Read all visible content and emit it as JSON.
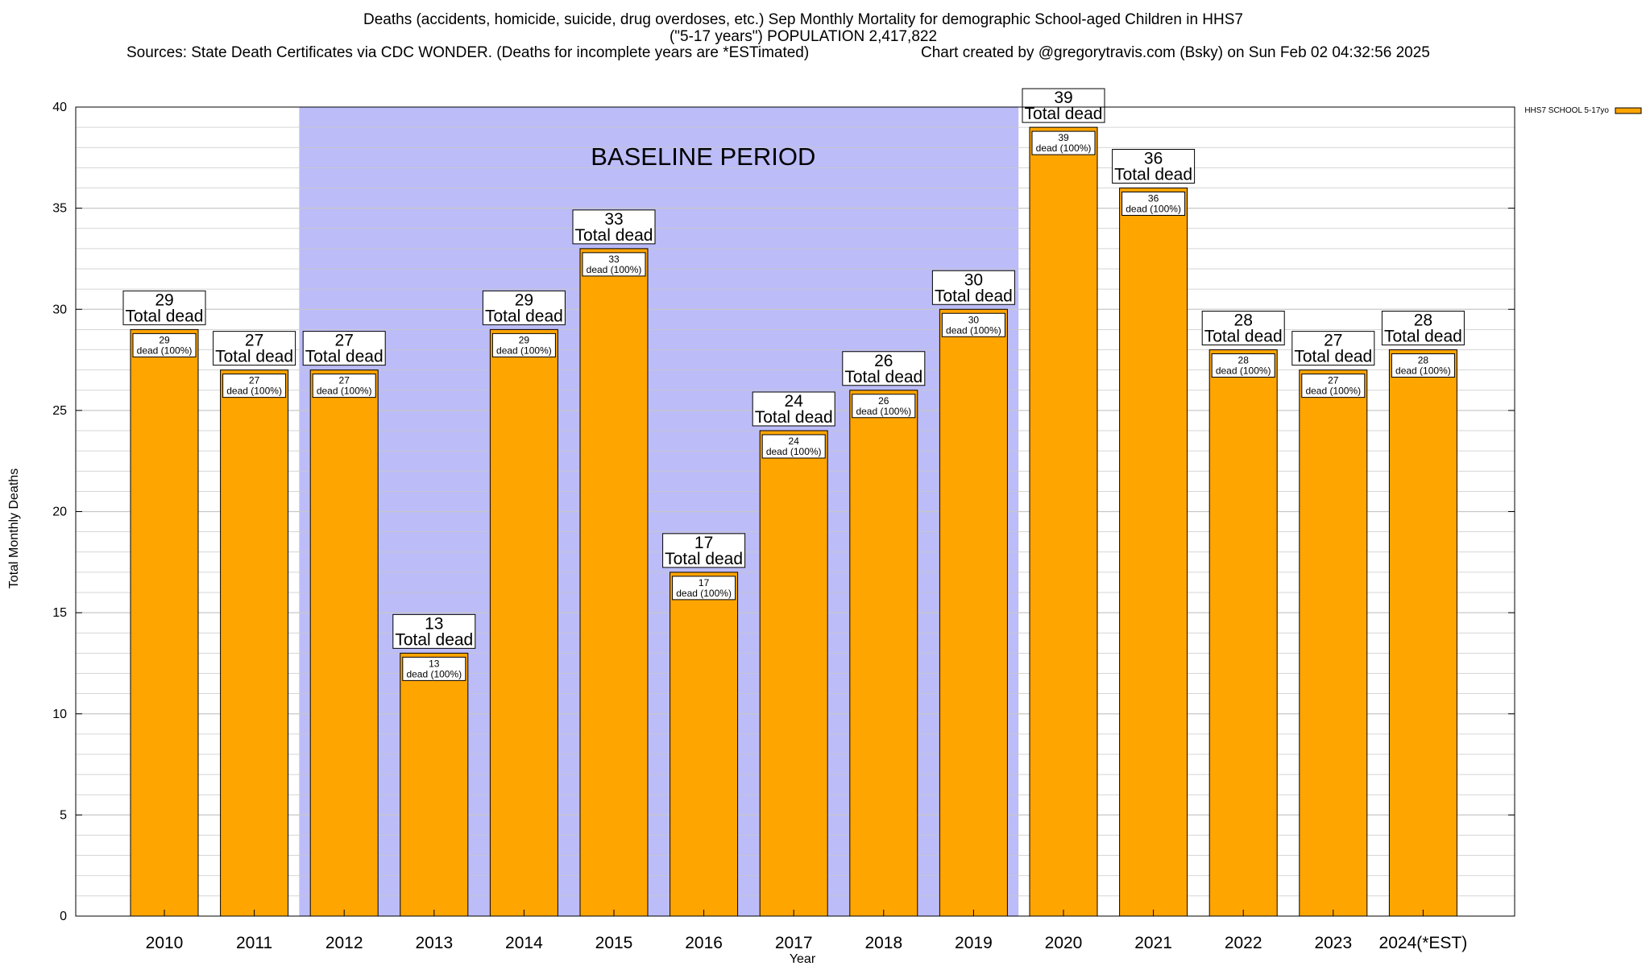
{
  "titles": {
    "line1": "Deaths (accidents, homicide, suicide, drug overdoses, etc.) Sep Monthly Mortality for demographic School-aged Children in HHS7",
    "line2": "(\"5-17 years\") POPULATION 2,417,822",
    "line3_left": "Sources: State Death Certificates via CDC WONDER. (Deaths for incomplete years are *ESTimated)",
    "line3_right": "Chart created by @gregorytravis.com (Bsky) on Sun Feb 02 04:32:56 2025"
  },
  "colors": {
    "bar_fill": "#ffa500",
    "bar_stroke": "#000000",
    "baseline_fill": "#bcbcf8",
    "grid": "#c8c8c8",
    "background": "#ffffff"
  },
  "chart_data": {
    "type": "bar",
    "xlabel": "Year",
    "ylabel": "Total Monthly Deaths",
    "ylim": [
      0,
      40
    ],
    "yticks": [
      0,
      5,
      10,
      15,
      20,
      25,
      30,
      35,
      40
    ],
    "grid": true,
    "legend_position": "top-right",
    "categories": [
      "2010",
      "2011",
      "2012",
      "2013",
      "2014",
      "2015",
      "2016",
      "2017",
      "2018",
      "2019",
      "2020",
      "2021",
      "2022",
      "2023",
      "2024(*EST)"
    ],
    "series": [
      {
        "name": "HHS7 SCHOOL 5-17yo",
        "values": [
          29,
          27,
          27,
          13,
          29,
          33,
          17,
          24,
          26,
          30,
          39,
          36,
          28,
          27,
          28
        ]
      }
    ],
    "bar_label_line2": "Total dead",
    "inner_label_suffix": "dead (100%)",
    "shaded_region": {
      "label": "BASELINE PERIOD",
      "from_category": "2012",
      "to_category": "2019"
    }
  }
}
